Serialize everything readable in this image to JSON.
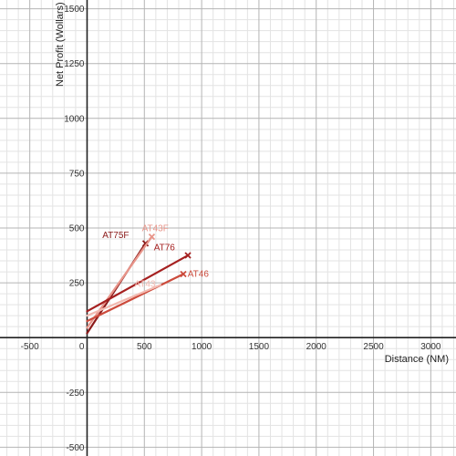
{
  "chart_data": {
    "type": "line",
    "xlabel": "Distance (NM)",
    "ylabel": "Net Profit (Wollars)",
    "xlim": [
      -760,
      3220
    ],
    "ylim": [
      -540,
      1540
    ],
    "grid": true,
    "x_ticks": [
      -500,
      500,
      1000,
      1500,
      2000,
      2500,
      3000
    ],
    "y_ticks": [
      -500,
      -250,
      250,
      500,
      750,
      1000,
      1250,
      1500
    ],
    "origin_label": "0",
    "series": [
      {
        "name": "AT75F",
        "color": "#8b1a1a",
        "points": [
          [
            0,
            20
          ],
          [
            510,
            430
          ]
        ],
        "end_marker": true
      },
      {
        "name": "AT43F",
        "color": "#e8958a",
        "points": [
          [
            0,
            45
          ],
          [
            565,
            460
          ]
        ],
        "end_marker": true
      },
      {
        "name": "AT76",
        "color": "#a52020",
        "points": [
          [
            0,
            120
          ],
          [
            880,
            375
          ]
        ],
        "end_marker": true
      },
      {
        "name": "AT46",
        "color": "#cc4b3c",
        "points": [
          [
            0,
            75
          ],
          [
            840,
            290
          ]
        ],
        "end_marker": true
      },
      {
        "name": "AT43",
        "color": "#f2b9b0",
        "points": [
          [
            0,
            100
          ],
          [
            640,
            240
          ]
        ],
        "end_marker": false
      }
    ],
    "series_labels": [
      {
        "series": "AT75F",
        "text": "AT75F",
        "x": 250,
        "y": 455,
        "color": "#8b1a1a"
      },
      {
        "series": "AT43F",
        "text": "AT43F",
        "x": 595,
        "y": 485,
        "color": "#e8958a"
      },
      {
        "series": "AT76",
        "text": "AT76",
        "x": 675,
        "y": 398,
        "color": "#a52020"
      },
      {
        "series": "AT46",
        "text": "AT46",
        "x": 970,
        "y": 278,
        "color": "#cc4b3c"
      },
      {
        "series": "AT43",
        "text": "AT43",
        "x": 505,
        "y": 232,
        "color": "#f2b9b0"
      }
    ]
  }
}
